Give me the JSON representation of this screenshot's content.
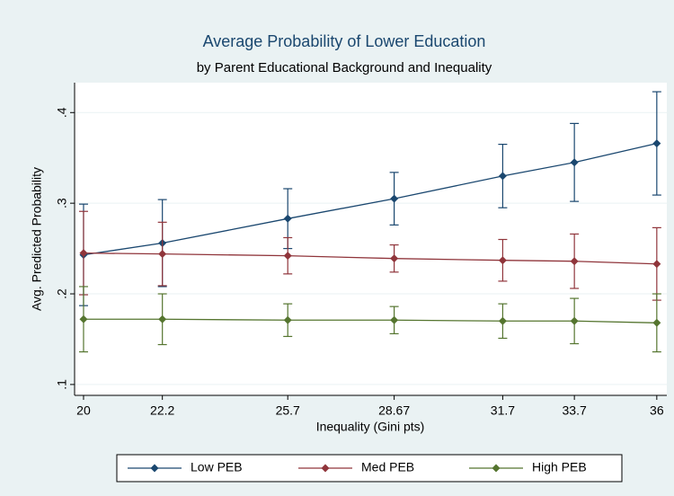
{
  "chart_data": {
    "type": "line-errorbar",
    "title": "Average Probability of Lower Education",
    "subtitle": "by Parent Educational Background and Inequality",
    "x_label": "Inequality (Gini pts)",
    "y_label": "Avg. Predicted Probability",
    "x": [
      20,
      22.2,
      25.7,
      28.67,
      31.7,
      33.7,
      36
    ],
    "xlim": [
      19.75,
      36.28
    ],
    "xticks": [
      20,
      22.2,
      25.7,
      28.67,
      31.7,
      33.7,
      36
    ],
    "ylim": [
      0.088,
      0.433
    ],
    "yticks": [
      {
        "value": 0.1,
        "label": ".1"
      },
      {
        "value": 0.2,
        "label": ".2"
      },
      {
        "value": 0.3,
        "label": ".3"
      },
      {
        "value": 0.4,
        "label": ".4"
      }
    ],
    "grid": true,
    "legend": "bottom",
    "series": [
      {
        "name": "Low PEB",
        "color": "#1a476f",
        "values": [
          0.243,
          0.256,
          0.283,
          0.305,
          0.33,
          0.345,
          0.366
        ],
        "errors": [
          0.056,
          0.048,
          0.033,
          0.029,
          0.035,
          0.043,
          0.057
        ]
      },
      {
        "name": "Med PEB",
        "color": "#90353b",
        "values": [
          0.245,
          0.244,
          0.242,
          0.239,
          0.237,
          0.236,
          0.233
        ],
        "errors": [
          0.046,
          0.035,
          0.02,
          0.015,
          0.023,
          0.03,
          0.04
        ]
      },
      {
        "name": "High PEB",
        "color": "#55752f",
        "values": [
          0.172,
          0.172,
          0.171,
          0.171,
          0.17,
          0.17,
          0.168
        ],
        "errors": [
          0.036,
          0.028,
          0.018,
          0.015,
          0.019,
          0.025,
          0.032
        ]
      }
    ]
  }
}
